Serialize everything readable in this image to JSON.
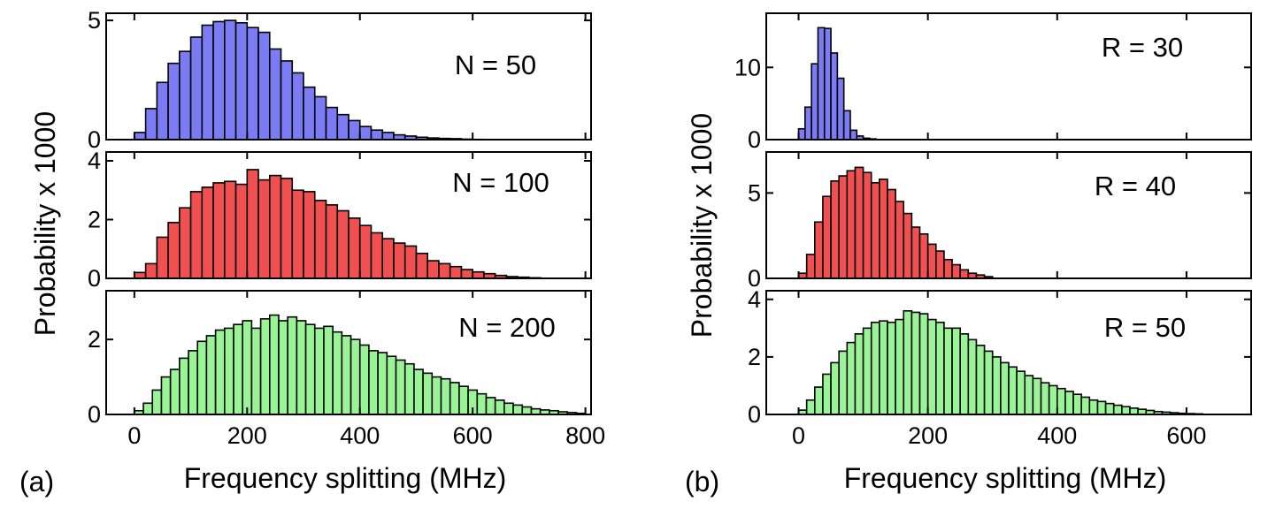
{
  "figure": {
    "panels": [
      {
        "tag": "(a)",
        "xlabel": "Frequency splitting (MHz)",
        "ylabel": "Probability x 1000",
        "x_ticks": [
          0,
          200,
          400,
          600,
          800
        ],
        "subplots": [
          {
            "annotation": "N = 50",
            "color": "#7b7bf3"
          },
          {
            "annotation": "N = 100",
            "color": "#f15050"
          },
          {
            "annotation": "N = 200",
            "color": "#98f494"
          }
        ]
      },
      {
        "tag": "(b)",
        "xlabel": "Frequency splitting (MHz)",
        "ylabel": "Probability x 1000",
        "x_ticks": [
          0,
          200,
          400,
          600
        ],
        "subplots": [
          {
            "annotation": "R = 30",
            "color": "#7b7bf3"
          },
          {
            "annotation": "R = 40",
            "color": "#f15050"
          },
          {
            "annotation": "R = 50",
            "color": "#98f494"
          }
        ]
      }
    ]
  },
  "chart_data": [
    {
      "type": "bar",
      "panel": "(a)",
      "title": "N = 50",
      "xlabel": "Frequency splitting (MHz)",
      "ylabel": "Probability x 1000",
      "xlim": [
        -50,
        810
      ],
      "ylim": [
        0,
        5.3
      ],
      "y_ticks": [
        0,
        5
      ],
      "bin_width": 20,
      "bin_start": 0,
      "values": [
        0.3,
        1.3,
        2.4,
        3.2,
        3.7,
        4.3,
        4.8,
        4.95,
        5.0,
        4.9,
        4.7,
        4.5,
        3.8,
        3.3,
        2.8,
        2.2,
        1.8,
        1.35,
        1.05,
        0.8,
        0.55,
        0.4,
        0.3,
        0.2,
        0.15,
        0.1,
        0.07,
        0.05,
        0.04,
        0.02,
        0.01
      ]
    },
    {
      "type": "bar",
      "panel": "(a)",
      "title": "N = 100",
      "xlabel": "Frequency splitting (MHz)",
      "ylabel": "Probability x 1000",
      "xlim": [
        -50,
        810
      ],
      "ylim": [
        0,
        4.3
      ],
      "y_ticks": [
        0,
        2,
        4
      ],
      "bin_width": 20,
      "bin_start": 0,
      "values": [
        0.2,
        0.5,
        1.4,
        1.9,
        2.4,
        2.95,
        3.1,
        3.25,
        3.3,
        3.2,
        3.7,
        3.35,
        3.5,
        3.4,
        3.0,
        2.95,
        2.65,
        2.5,
        2.3,
        2.05,
        1.8,
        1.55,
        1.35,
        1.2,
        1.1,
        0.85,
        0.6,
        0.5,
        0.4,
        0.3,
        0.22,
        0.16,
        0.1,
        0.06,
        0.04,
        0.02
      ]
    },
    {
      "type": "bar",
      "panel": "(a)",
      "title": "N = 200",
      "xlabel": "Frequency splitting (MHz)",
      "ylabel": "Probability x 1000",
      "xlim": [
        -50,
        810
      ],
      "ylim": [
        0,
        3.3
      ],
      "y_ticks": [
        0,
        2
      ],
      "bin_width": 16,
      "bin_start": 0,
      "values": [
        0.1,
        0.3,
        0.65,
        1.0,
        1.2,
        1.5,
        1.7,
        1.95,
        2.1,
        2.25,
        2.3,
        2.4,
        2.5,
        2.3,
        2.55,
        2.65,
        2.5,
        2.6,
        2.5,
        2.4,
        2.3,
        2.35,
        2.2,
        2.1,
        2.0,
        1.85,
        1.7,
        1.65,
        1.55,
        1.45,
        1.35,
        1.2,
        1.1,
        1.0,
        0.95,
        0.85,
        0.75,
        0.65,
        0.55,
        0.45,
        0.38,
        0.3,
        0.25,
        0.2,
        0.15,
        0.12,
        0.1,
        0.07,
        0.05,
        0.03
      ]
    },
    {
      "type": "bar",
      "panel": "(b)",
      "title": "R = 30",
      "xlabel": "Frequency splitting (MHz)",
      "ylabel": "Probability x 1000",
      "xlim": [
        -50,
        700
      ],
      "ylim": [
        0,
        17.5
      ],
      "y_ticks": [
        0,
        10
      ],
      "bin_width": 10,
      "bin_start": 0,
      "values": [
        1.5,
        4.5,
        10.5,
        15.5,
        15.4,
        12.0,
        8.5,
        4.0,
        1.3,
        0.5,
        0.2,
        0.1
      ]
    },
    {
      "type": "bar",
      "panel": "(b)",
      "title": "R = 40",
      "xlabel": "Frequency splitting (MHz)",
      "ylabel": "Probability x 1000",
      "xlim": [
        -50,
        700
      ],
      "ylim": [
        0,
        7.4
      ],
      "y_ticks": [
        0,
        5
      ],
      "bin_width": 12.5,
      "bin_start": 0,
      "values": [
        0.3,
        1.4,
        3.3,
        4.8,
        5.7,
        6.0,
        6.3,
        6.5,
        6.2,
        5.6,
        5.8,
        5.2,
        4.5,
        3.8,
        3.0,
        2.6,
        2.0,
        1.6,
        1.1,
        0.8,
        0.5,
        0.3,
        0.2,
        0.1
      ]
    },
    {
      "type": "bar",
      "panel": "(b)",
      "title": "R = 50",
      "xlabel": "Frequency splitting (MHz)",
      "ylabel": "Probability x 1000",
      "xlim": [
        -50,
        700
      ],
      "ylim": [
        0,
        4.3
      ],
      "y_ticks": [
        0,
        2,
        4
      ],
      "bin_width": 12.5,
      "bin_start": 0,
      "values": [
        0.15,
        0.5,
        0.95,
        1.4,
        1.8,
        2.2,
        2.5,
        2.8,
        3.0,
        3.2,
        3.25,
        3.2,
        3.3,
        3.6,
        3.55,
        3.5,
        3.3,
        3.2,
        3.0,
        3.0,
        2.8,
        2.6,
        2.4,
        2.2,
        2.0,
        1.8,
        1.65,
        1.5,
        1.35,
        1.25,
        1.1,
        1.0,
        0.9,
        0.8,
        0.7,
        0.6,
        0.5,
        0.45,
        0.38,
        0.32,
        0.27,
        0.22,
        0.18,
        0.14,
        0.1,
        0.08,
        0.06,
        0.04,
        0.03,
        0.02
      ]
    }
  ]
}
